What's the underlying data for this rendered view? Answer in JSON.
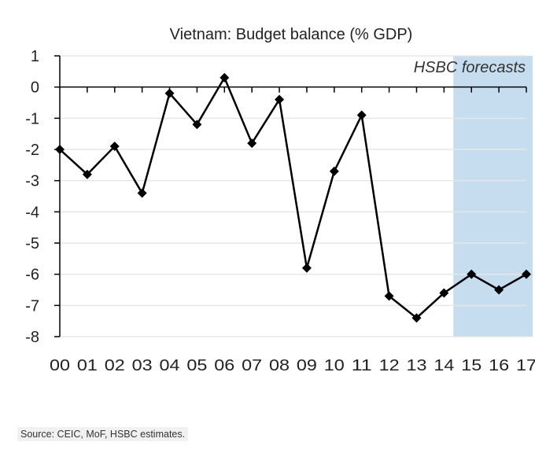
{
  "chart_data": {
    "type": "line",
    "title": "Vietnam: Budget balance (% GDP)",
    "xlabel": "",
    "ylabel": "",
    "categories": [
      "00",
      "01",
      "02",
      "03",
      "04",
      "05",
      "06",
      "07",
      "08",
      "09",
      "10",
      "11",
      "12",
      "13",
      "14",
      "15",
      "16",
      "17"
    ],
    "series": [
      {
        "values": [
          -2.0,
          -2.8,
          -1.9,
          -3.4,
          -0.2,
          -1.2,
          0.3,
          -1.8,
          -0.4,
          -5.8,
          -2.7,
          -0.9,
          -6.7,
          -7.4,
          -6.6,
          -6.0,
          -6.5,
          -6.0
        ]
      }
    ],
    "ylim": [
      -8,
      1
    ],
    "yticks": [
      1,
      0,
      -1,
      -2,
      -3,
      -4,
      -5,
      -6,
      -7,
      -8
    ],
    "grid": true,
    "forecast_region": {
      "from": "15",
      "to": "17",
      "label": "HSBC forecasts"
    },
    "colors": {
      "line": "#000000",
      "forecast_shade": "#c6ddf0",
      "grid": "#e6e6e6"
    }
  },
  "source": "Source: CEIC, MoF, HSBC estimates."
}
